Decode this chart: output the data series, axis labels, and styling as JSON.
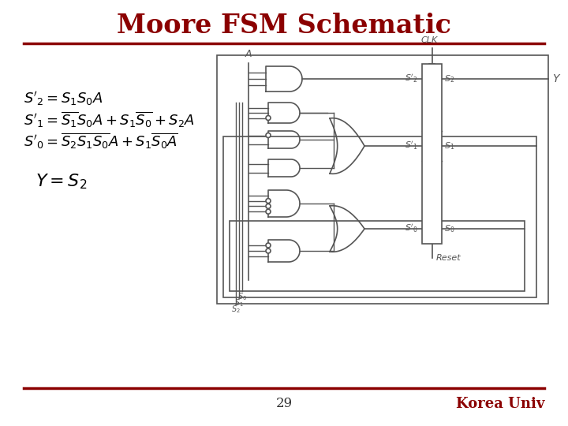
{
  "title": "Moore FSM Schematic",
  "title_color": "#8B0000",
  "title_fontsize": 24,
  "bg_color": "#FFFFFF",
  "separator_color": "#8B0000",
  "page_number": "29",
  "footer_text": "Korea Univ",
  "footer_color": "#8B0000",
  "diagram_color": "#555555",
  "text_color": "#000000"
}
